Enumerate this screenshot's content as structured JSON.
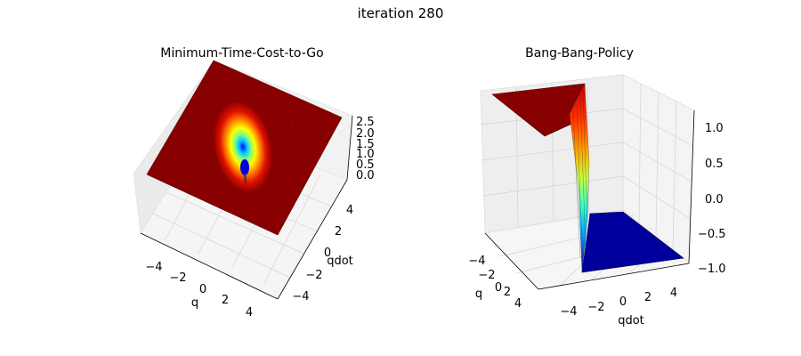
{
  "suptitle": "iteration 280",
  "chart_data": [
    {
      "type": "surface",
      "title": "Minimum-Time-Cost-to-Go",
      "xlabel": "q",
      "ylabel": "qdot",
      "colormap": "jet",
      "x_ticks": [
        "−4",
        "−2",
        "0",
        "2",
        "4"
      ],
      "y_ticks": [
        "−4",
        "−2",
        "0",
        "2",
        "4"
      ],
      "z_ticks": [
        "0.0",
        "0.5",
        "1.0",
        "1.5",
        "2.0",
        "2.5"
      ],
      "xlim": [
        -5,
        5
      ],
      "ylim": [
        -5,
        5
      ],
      "zlim": [
        0,
        2.5
      ],
      "description_values": {
        "plateau_value": 2.5,
        "minimum_value": 0.0,
        "minimum_at": [
          0,
          0
        ]
      }
    },
    {
      "type": "surface",
      "title": "Bang-Bang-Policy",
      "xlabel": "q",
      "ylabel": "qdot",
      "colormap": "jet",
      "x_ticks": [
        "−4",
        "−2",
        "0",
        "2",
        "4"
      ],
      "y_ticks": [
        "−4",
        "−2",
        "0",
        "2",
        "4"
      ],
      "z_ticks": [
        "1.0",
        "0.5",
        "0.0",
        "−0.5",
        "−1.0"
      ],
      "xlim": [
        -5,
        5
      ],
      "ylim": [
        -5,
        5
      ],
      "zlim": [
        -1,
        1
      ],
      "description_values": {
        "high_value": 1,
        "low_value": -1
      }
    }
  ]
}
